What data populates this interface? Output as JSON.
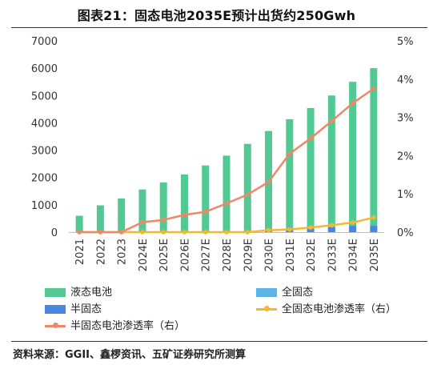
{
  "title": "图表21：固态电池2035E预计出货约250Gwh",
  "source": "资料来源：GGII、鑫椤资讯、五矿证券研究所测算",
  "colors": {
    "liquid": "#52c993",
    "all_solid": "#5bb4e5",
    "semi_solid": "#4a86e0",
    "all_solid_rate": "#f5b731",
    "semi_solid_rate": "#f0866a"
  },
  "chart_data": {
    "type": "bar",
    "categories": [
      "2021",
      "2022",
      "2023",
      "2024E",
      "2025E",
      "2026E",
      "2027E",
      "2028E",
      "2029E",
      "2030E",
      "2031E",
      "2032E",
      "2033E",
      "2034E",
      "2035E"
    ],
    "series": [
      {
        "name": "液态电池",
        "type": "bar",
        "axis": "left",
        "values": [
          600,
          980,
          1230,
          1560,
          1820,
          2110,
          2440,
          2800,
          3230,
          3700,
          4130,
          4540,
          5000,
          5500,
          6000
        ]
      },
      {
        "name": "全固态",
        "type": "bar",
        "axis": "left",
        "values": [
          0,
          0,
          0,
          0,
          0,
          0,
          0,
          0,
          0,
          0,
          0,
          5,
          10,
          15,
          20
        ]
      },
      {
        "name": "半固态",
        "type": "bar",
        "axis": "left",
        "values": [
          0,
          0,
          0,
          5,
          10,
          15,
          25,
          30,
          40,
          60,
          90,
          140,
          180,
          230,
          230
        ]
      },
      {
        "name": "全固态电池渗透率（右）",
        "type": "line",
        "axis": "right",
        "values": [
          0,
          0,
          0,
          0,
          0,
          0,
          0,
          0,
          0,
          0.0005,
          0.0007,
          0.0012,
          0.0018,
          0.0025,
          0.0038
        ]
      },
      {
        "name": "半固态电池渗透率（右）",
        "type": "line",
        "axis": "right",
        "values": [
          0,
          0,
          0,
          0.0026,
          0.0032,
          0.0045,
          0.0053,
          0.0075,
          0.0098,
          0.0131,
          0.0205,
          0.0245,
          0.029,
          0.0337,
          0.0375
        ]
      }
    ],
    "y_left": {
      "ylim": [
        0,
        7000
      ],
      "ticks": [
        "0",
        "1000",
        "2000",
        "3000",
        "4000",
        "5000",
        "6000",
        "7000"
      ]
    },
    "y_right": {
      "ylim": [
        0,
        0.05
      ],
      "ticks": [
        "0%",
        "1%",
        "2%",
        "3%",
        "4%",
        "5%"
      ]
    },
    "legend": "bottom",
    "grid": false
  },
  "legend_labels": {
    "liquid": "液态电池",
    "all_solid": "全固态",
    "semi_solid": "半固态",
    "all_solid_rate": "全固态电池渗透率（右）",
    "semi_solid_rate": "半固态电池渗透率（右）"
  }
}
